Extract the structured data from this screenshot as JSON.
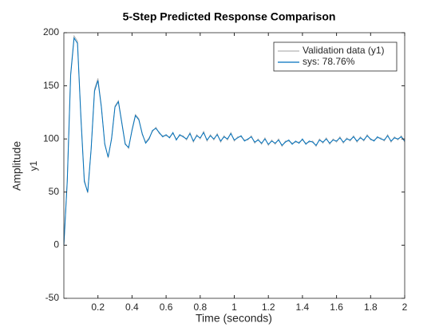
{
  "chart_data": {
    "type": "line",
    "title": "5-Step Predicted Response Comparison",
    "xlabel": "Time (seconds)",
    "ylabel": "Amplitude",
    "output_label": "y1",
    "x": [
      0,
      0.02,
      0.04,
      0.06,
      0.08,
      0.1,
      0.12,
      0.14,
      0.16,
      0.18,
      0.2,
      0.22,
      0.24,
      0.26,
      0.28,
      0.3,
      0.32,
      0.34,
      0.36,
      0.38,
      0.4,
      0.42,
      0.44,
      0.46,
      0.48,
      0.5,
      0.52,
      0.54,
      0.56,
      0.58,
      0.6,
      0.62,
      0.64,
      0.66,
      0.68,
      0.7,
      0.72,
      0.74,
      0.76,
      0.78,
      0.8,
      0.82,
      0.84,
      0.86,
      0.88,
      0.9,
      0.92,
      0.94,
      0.96,
      0.98,
      1,
      1.02,
      1.04,
      1.06,
      1.08,
      1.1,
      1.12,
      1.14,
      1.16,
      1.18,
      1.2,
      1.22,
      1.24,
      1.26,
      1.28,
      1.3,
      1.32,
      1.34,
      1.36,
      1.38,
      1.4,
      1.42,
      1.44,
      1.46,
      1.48,
      1.5,
      1.52,
      1.54,
      1.56,
      1.58,
      1.6,
      1.62,
      1.64,
      1.66,
      1.68,
      1.7,
      1.72,
      1.74,
      1.76,
      1.78,
      1.8,
      1.82,
      1.84,
      1.86,
      1.88,
      1.9,
      1.92,
      1.94,
      1.96,
      1.98,
      2
    ],
    "series": [
      {
        "name": "Validation data (y1)",
        "color": "#b3b3b3",
        "values": [
          0,
          62,
          162,
          197,
          192,
          122,
          62,
          49,
          91,
          147,
          157,
          131,
          96,
          82,
          101,
          131,
          136,
          116,
          96,
          91,
          109,
          123,
          119,
          104,
          97,
          101,
          107,
          111,
          105,
          103,
          103,
          102,
          105,
          100,
          103,
          103,
          99,
          106,
          97,
          104,
          100,
          107,
          98,
          104,
          99,
          105,
          97,
          103,
          99,
          106,
          98,
          102,
          102,
          99,
          99,
          103,
          96,
          100,
          95,
          101,
          94,
          99,
          95,
          100,
          93,
          98,
          98,
          96,
          97,
          97,
          99,
          96,
          97,
          98,
          93,
          100,
          96,
          101,
          95,
          100,
          97,
          102,
          96,
          101,
          98,
          103,
          97,
          102,
          98,
          104,
          99,
          99,
          101,
          101,
          98,
          104,
          97,
          102,
          99,
          103,
          97
        ]
      },
      {
        "name": "sys: 78.76%",
        "color": "#0072bd",
        "values": [
          0,
          60,
          160,
          195,
          190,
          120,
          60,
          50,
          90,
          145,
          155,
          130,
          95,
          83,
          100,
          130,
          135,
          115,
          95,
          92,
          108,
          122,
          118,
          105,
          96,
          100,
          108,
          110,
          106,
          102,
          104,
          101,
          106,
          99,
          104,
          102,
          100,
          105,
          98,
          103,
          101,
          106,
          99,
          103,
          100,
          104,
          98,
          102,
          100,
          105,
          99,
          101,
          103,
          98,
          100,
          102,
          97,
          99,
          96,
          100,
          95,
          98,
          96,
          99,
          94,
          97,
          99,
          95,
          98,
          96,
          100,
          95,
          98,
          97,
          94,
          99,
          97,
          100,
          96,
          99,
          98,
          101,
          97,
          100,
          99,
          102,
          98,
          101,
          99,
          103,
          100,
          98,
          102,
          100,
          99,
          103,
          98,
          101,
          100,
          102,
          98
        ]
      }
    ],
    "xlim": [
      0,
      2
    ],
    "xticks": [
      0.2,
      0.4,
      0.6,
      0.8,
      1,
      1.2,
      1.4,
      1.6,
      1.8,
      2
    ],
    "ylim": [
      -50,
      200
    ],
    "yticks": [
      -50,
      0,
      50,
      100,
      150,
      200
    ],
    "grid": false,
    "legend": "northeast"
  }
}
